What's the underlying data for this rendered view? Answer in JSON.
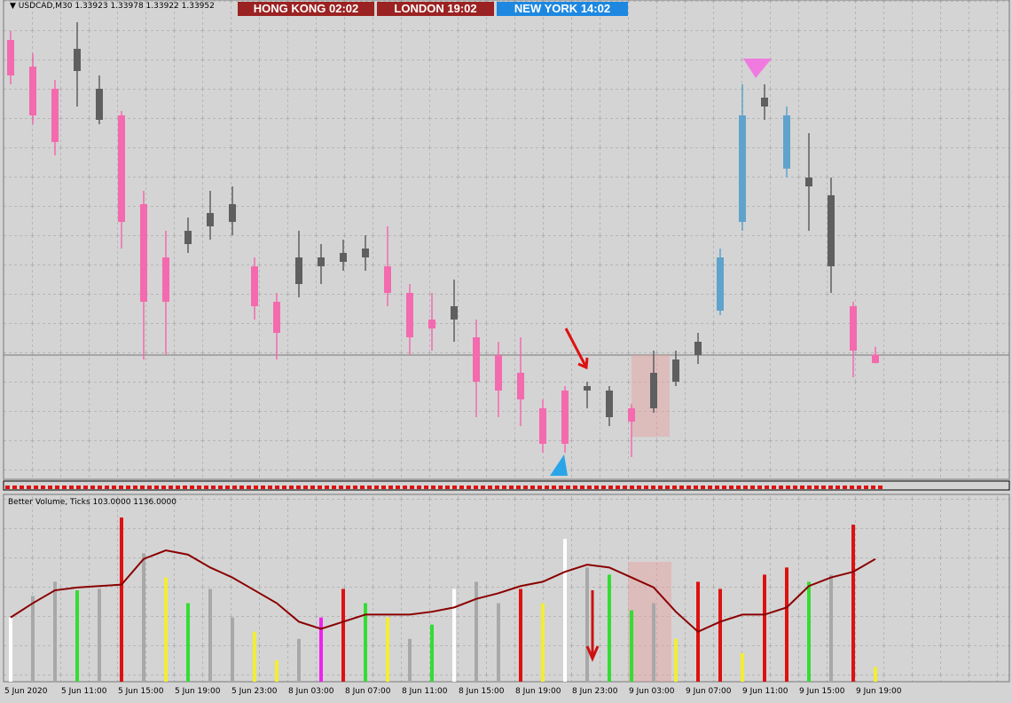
{
  "symbol": "USDCAD,M30",
  "clocks": [
    {
      "city": "HONG KONG",
      "time": "02:02"
    },
    {
      "city": "LONDON",
      "time": "19:02"
    },
    {
      "city": "NEW YORK",
      "time": "14:02"
    }
  ],
  "chart_data": [
    {
      "type": "candlestick",
      "ylim": [
        1.3353,
        1.3515
      ],
      "open": [
        1.35015,
        1.34925,
        1.3485,
        1.3491,
        1.3485,
        1.3476,
        1.3446,
        1.3428,
        1.34325,
        1.34385,
        1.344,
        1.3425,
        1.3413,
        1.3419,
        1.3425,
        1.34265,
        1.3428,
        1.3425,
        1.3416,
        1.3407,
        1.34115,
        1.3401,
        1.3395,
        1.3389,
        1.3377,
        1.3365,
        1.3383,
        1.3383,
        1.33725,
        1.3377,
        1.3386,
        1.3395,
        1.341,
        1.344,
        1.3479,
        1.3476,
        1.3455,
        1.3449,
        1.34115,
        1.33923
      ],
      "high": [
        1.35045,
        1.3497,
        1.3488,
        1.35075,
        1.34895,
        1.34775,
        1.34505,
        1.3437,
        1.34415,
        1.34505,
        1.3452,
        1.3428,
        1.3416,
        1.3437,
        1.34325,
        1.3434,
        1.34355,
        1.34385,
        1.3419,
        1.3416,
        1.34205,
        1.3407,
        1.33995,
        1.3401,
        1.338,
        1.33845,
        1.3386,
        1.33845,
        1.33785,
        1.33965,
        1.33965,
        1.34025,
        1.3431,
        1.34865,
        1.34865,
        1.3479,
        1.347,
        1.3455,
        1.3413,
        1.33978
      ],
      "low": [
        1.34865,
        1.3473,
        1.34625,
        1.3479,
        1.3473,
        1.3431,
        1.33935,
        1.3395,
        1.34295,
        1.3434,
        1.34355,
        1.3407,
        1.33935,
        1.34145,
        1.3419,
        1.34235,
        1.34235,
        1.34115,
        1.3395,
        1.33965,
        1.33995,
        1.3374,
        1.3374,
        1.3371,
        1.3362,
        1.3362,
        1.3377,
        1.3371,
        1.33605,
        1.33755,
        1.33845,
        1.3392,
        1.34085,
        1.3437,
        1.34745,
        1.3455,
        1.3437,
        1.3416,
        1.33875,
        1.33922
      ],
      "close": [
        1.34895,
        1.3476,
        1.3467,
        1.34985,
        1.34745,
        1.344,
        1.3413,
        1.3413,
        1.3437,
        1.3443,
        1.3446,
        1.34115,
        1.34025,
        1.3428,
        1.3428,
        1.34295,
        1.3431,
        1.3416,
        1.3401,
        1.3404,
        1.3407,
        1.3386,
        1.3383,
        1.338,
        1.3365,
        1.3383,
        1.33845,
        1.3374,
        1.3377,
        1.3389,
        1.33935,
        1.33995,
        1.3428,
        1.3476,
        1.3482,
        1.3458,
        1.3452,
        1.3425,
        1.33965,
        1.33952
      ],
      "colors": [
        "#f46aae",
        "#f46aae",
        "#f46aae",
        "#5f5f5f",
        "#5f5f5f",
        "#f46aae",
        "#f46aae",
        "#f46aae",
        "#5f5f5f",
        "#5f5f5f",
        "#5f5f5f",
        "#f46aae",
        "#f46aae",
        "#5f5f5f",
        "#5f5f5f",
        "#5f5f5f",
        "#5f5f5f",
        "#f46aae",
        "#f46aae",
        "#f46aae",
        "#5f5f5f",
        "#f46aae",
        "#f46aae",
        "#f46aae",
        "#f46aae",
        "#f46aae",
        "#5f5f5f",
        "#5f5f5f",
        "#f46aae",
        "#5f5f5f",
        "#5f5f5f",
        "#5f5f5f",
        "#5fa3cc",
        "#5fa3cc",
        "#5f5f5f",
        "#5fa3cc",
        "#5f5f5f",
        "#5f5f5f",
        "#f46aae",
        "#f46aae"
      ]
    },
    {
      "type": "bar",
      "title": "Better Volume, Ticks 103.0000 1136.0000",
      "ylim": [
        0,
        1200
      ],
      "values": [
        450,
        600,
        700,
        640,
        650,
        1150,
        900,
        730,
        550,
        650,
        450,
        350,
        150,
        300,
        450,
        650,
        550,
        450,
        300,
        400,
        650,
        700,
        550,
        650,
        550,
        1000,
        800,
        750,
        500,
        550,
        300,
        700,
        650,
        200,
        750,
        800,
        700,
        750,
        1100,
        103
      ],
      "colors": [
        "#ffffff",
        "#a8a8a8",
        "#a8a8a8",
        "#33dd33",
        "#a8a8a8",
        "#dd1111",
        "#a8a8a8",
        "#f2ee30",
        "#33dd33",
        "#a8a8a8",
        "#a8a8a8",
        "#f2ee30",
        "#f2ee30",
        "#a8a8a8",
        "#ee22ee",
        "#dd1111",
        "#33dd33",
        "#f2ee30",
        "#a8a8a8",
        "#33dd33",
        "#ffffff",
        "#a8a8a8",
        "#a8a8a8",
        "#dd1111",
        "#f2ee30",
        "#ffffff",
        "#a8a8a8",
        "#33dd33",
        "#33dd33",
        "#a8a8a8",
        "#f2ee30",
        "#dd1111",
        "#dd1111",
        "#f2ee30",
        "#dd1111",
        "#dd1111",
        "#33dd33",
        "#a8a8a8",
        "#dd1111",
        "#f2ee30"
      ],
      "ma": {
        "color": "#8b0000",
        "values": [
          450,
          550,
          640,
          660,
          670,
          680,
          860,
          920,
          890,
          800,
          730,
          640,
          550,
          420,
          370,
          420,
          470,
          470,
          470,
          490,
          520,
          580,
          620,
          670,
          700,
          770,
          820,
          800,
          730,
          660,
          490,
          350,
          420,
          470,
          470,
          520,
          670,
          730,
          770,
          860
        ]
      }
    }
  ],
  "time_axis": [
    "5 Jun 2020",
    "5 Jun 11:00",
    "5 Jun 15:00",
    "5 Jun 19:00",
    "5 Jun 23:00",
    "8 Jun 03:00",
    "8 Jun 07:00",
    "8 Jun 11:00",
    "8 Jun 15:00",
    "8 Jun 19:00",
    "8 Jun 23:00",
    "9 Jun 03:00",
    "9 Jun 07:00",
    "9 Jun 11:00",
    "9 Jun 15:00",
    "9 Jun 19:00"
  ]
}
